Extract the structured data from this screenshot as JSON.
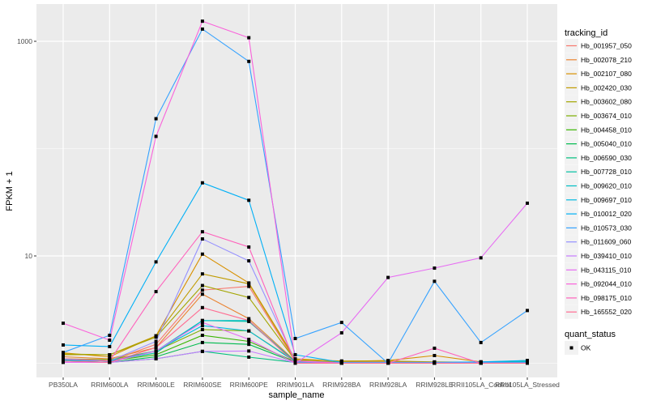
{
  "chart_data": {
    "type": "line",
    "xlabel": "sample_name",
    "ylabel": "FPKM + 1",
    "y_scale": "log10",
    "ylim": [
      0.95,
      1700
    ],
    "y_ticks": [
      10,
      1000
    ],
    "y_tick_labels": [
      "10",
      "1000"
    ],
    "grid": true,
    "legend_position": "right",
    "categories": [
      "PB350LA",
      "RRIM600LA",
      "RRIM600LE",
      "RRIM600SE",
      "RRIM600PE",
      "RRIM901LA",
      "RRIM928BA",
      "RRIM928LA",
      "RRIM928LE",
      "RRII105LA_Control",
      "RRII105LA_Stressed"
    ],
    "legend_title": "tracking_id",
    "series": [
      {
        "name": "Hb_001957_050",
        "color": "#F8766D",
        "values": [
          1.1,
          1.05,
          1.5,
          4.8,
          5.2,
          1.05,
          1.02,
          1.0,
          1.0,
          1.0,
          1.0
        ]
      },
      {
        "name": "Hb_002078_210",
        "color": "#EA8331",
        "values": [
          1.15,
          1.1,
          1.4,
          4.4,
          2.6,
          1.05,
          1.03,
          1.03,
          1.02,
          1.02,
          1.03
        ]
      },
      {
        "name": "Hb_002107_080",
        "color": "#D89000",
        "values": [
          1.25,
          1.15,
          1.8,
          10.4,
          5.6,
          1.1,
          1.04,
          1.06,
          1.18,
          1.03,
          1.05
        ]
      },
      {
        "name": "Hb_002420_030",
        "color": "#C09B00",
        "values": [
          1.2,
          1.2,
          1.8,
          6.8,
          5.5,
          1.08,
          1.05,
          1.05,
          1.03,
          1.02,
          1.02
        ]
      },
      {
        "name": "Hb_003602_080",
        "color": "#A3A500",
        "values": [
          1.22,
          1.2,
          1.75,
          5.3,
          4.1,
          1.06,
          1.02,
          1.02,
          1.02,
          1.02,
          1.06
        ]
      },
      {
        "name": "Hb_003674_010",
        "color": "#7CAE00",
        "values": [
          1.1,
          1.08,
          1.3,
          2.06,
          2.0,
          1.04,
          1.02,
          1.01,
          1.01,
          1.01,
          1.02
        ]
      },
      {
        "name": "Hb_004458_010",
        "color": "#39B600",
        "values": [
          1.08,
          1.05,
          1.2,
          1.82,
          1.6,
          1.03,
          1.01,
          1.01,
          1.01,
          1.01,
          1.01
        ]
      },
      {
        "name": "Hb_005040_010",
        "color": "#00BB4E",
        "values": [
          1.05,
          1.02,
          1.15,
          1.56,
          1.5,
          1.02,
          1.01,
          1.01,
          1.01,
          1.01,
          1.01
        ]
      },
      {
        "name": "Hb_006590_030",
        "color": "#00BF7D",
        "values": [
          1.05,
          1.02,
          1.1,
          1.29,
          1.14,
          1.02,
          1.01,
          1.01,
          1.01,
          1.01,
          1.01
        ]
      },
      {
        "name": "Hb_007728_010",
        "color": "#00C1A3",
        "values": [
          1.07,
          1.05,
          1.25,
          2.5,
          2.45,
          1.03,
          1.01,
          1.01,
          1.01,
          1.01,
          1.03
        ]
      },
      {
        "name": "Hb_009620_010",
        "color": "#00BFC4",
        "values": [
          1.08,
          1.05,
          1.3,
          2.5,
          2.5,
          1.03,
          1.01,
          1.01,
          1.01,
          1.02,
          1.04
        ]
      },
      {
        "name": "Hb_009697_010",
        "color": "#00BAE0",
        "values": [
          1.06,
          1.05,
          1.3,
          2.24,
          2.0,
          1.03,
          1.01,
          1.01,
          1.01,
          1.01,
          1.02
        ]
      },
      {
        "name": "Hb_010012_020",
        "color": "#00B0F6",
        "values": [
          1.48,
          1.43,
          8.8,
          48,
          33,
          1.2,
          1.02,
          1.02,
          1.02,
          1.03,
          1.06
        ]
      },
      {
        "name": "Hb_010573_030",
        "color": "#35A2FF",
        "values": [
          1.26,
          1.82,
          190,
          1300,
          650,
          1.7,
          2.4,
          1.0,
          5.8,
          1.56,
          3.1
        ]
      },
      {
        "name": "Hb_011609_060",
        "color": "#9590FF",
        "values": [
          1.1,
          1.05,
          1.6,
          14.4,
          9.0,
          1.05,
          1.01,
          1.01,
          1.01,
          1.01,
          1.01
        ]
      },
      {
        "name": "Hb_039410_010",
        "color": "#C77CFF",
        "values": [
          1.02,
          1.02,
          1.1,
          1.29,
          1.3,
          1.01,
          1.0,
          1.0,
          1.0,
          1.0,
          1.0
        ]
      },
      {
        "name": "Hb_043115_010",
        "color": "#E76BF3",
        "values": [
          1.02,
          1.02,
          1.3,
          2.4,
          1.67,
          1.0,
          1.92,
          6.3,
          7.7,
          9.6,
          31
        ]
      },
      {
        "name": "Hb_092044_010",
        "color": "#FA62DB",
        "values": [
          2.36,
          1.64,
          130,
          1540,
          1080,
          1.05,
          1.0,
          1.0,
          1.0,
          1.0,
          1.0
        ]
      },
      {
        "name": "Hb_098175_010",
        "color": "#FF62BC",
        "values": [
          1.1,
          1.05,
          4.65,
          16.8,
          12.1,
          1.0,
          1.0,
          1.0,
          1.38,
          1.0,
          1.0
        ]
      },
      {
        "name": "Hb_165552_020",
        "color": "#FF6C91",
        "values": [
          1.05,
          1.02,
          1.4,
          3.3,
          2.5,
          1.0,
          1.0,
          1.0,
          1.0,
          1.0,
          1.0
        ]
      }
    ],
    "shape_legend_title": "quant_status",
    "shape_legend_items": [
      "OK"
    ]
  }
}
